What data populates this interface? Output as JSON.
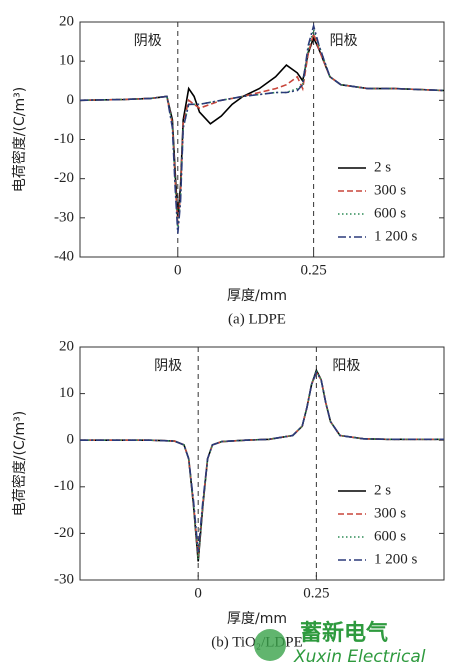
{
  "chart_data": [
    {
      "type": "line",
      "y_label": "电荷密度/(C/m³)",
      "x_label": "厚度/mm",
      "caption": "(a) LDPE",
      "annotations": [
        "阴极",
        "阳极"
      ],
      "vlines": [
        0,
        0.25
      ],
      "xlim": [
        -0.18,
        0.49
      ],
      "ylim": [
        -40,
        20
      ],
      "xticks": [
        0,
        0.25
      ],
      "yticks": [
        20,
        10,
        0,
        -10,
        -20,
        -30,
        -40
      ],
      "legend": "lower right",
      "x": [
        -0.18,
        -0.1,
        -0.05,
        -0.02,
        -0.01,
        -0.005,
        0,
        0.005,
        0.01,
        0.02,
        0.03,
        0.04,
        0.06,
        0.08,
        0.1,
        0.12,
        0.15,
        0.18,
        0.2,
        0.22,
        0.23,
        0.24,
        0.25,
        0.26,
        0.28,
        0.3,
        0.35,
        0.4,
        0.49
      ],
      "series": [
        {
          "name": "2 s",
          "color": "#000000",
          "dash": "solid",
          "values": [
            0,
            0.2,
            0.5,
            1,
            -5,
            -18,
            -30,
            -22,
            -5,
            3,
            1,
            -3,
            -6,
            -4,
            -1,
            1,
            3,
            6,
            9,
            7,
            5,
            12,
            16,
            13,
            6,
            4,
            3,
            3,
            2.5
          ]
        },
        {
          "name": "300 s",
          "color": "#c8453a",
          "dash": "dashed",
          "values": [
            0,
            0.2,
            0.5,
            1,
            -6,
            -20,
            -32,
            -24,
            -6,
            0,
            -1,
            -2,
            -1,
            0,
            0.5,
            1,
            2,
            3,
            4,
            6,
            3,
            12,
            17,
            13,
            6,
            4,
            3,
            3,
            2.5
          ]
        },
        {
          "name": "600 s",
          "color": "#2e8b57",
          "dash": "dotted",
          "values": [
            0,
            0.2,
            0.5,
            1,
            -6,
            -21,
            -33,
            -25,
            -7,
            -1,
            -1,
            -1,
            -0.5,
            0,
            0.5,
            1,
            1.5,
            2,
            2,
            3,
            4,
            13,
            18,
            14,
            6,
            4,
            3,
            3,
            2.5
          ]
        },
        {
          "name": "1 200 s",
          "color": "#2b3a7a",
          "dash": "dashdot",
          "values": [
            0,
            0.2,
            0.5,
            1,
            -7,
            -22,
            -34,
            -26,
            -7,
            -1,
            -1,
            -1,
            -0.5,
            0,
            0.5,
            1,
            1.5,
            2,
            2,
            2.5,
            4,
            14,
            19,
            14,
            6,
            4,
            3,
            3,
            2.5
          ]
        }
      ]
    },
    {
      "type": "line",
      "y_label": "电荷密度/(C/m³)",
      "x_label": "厚度/mm",
      "caption": "(b) TiO₂/LDPE",
      "annotations": [
        "阴极",
        "阳极"
      ],
      "vlines": [
        0,
        0.25
      ],
      "xlim": [
        -0.25,
        0.52
      ],
      "ylim": [
        -30,
        20
      ],
      "xticks": [
        0,
        0.25
      ],
      "yticks": [
        20,
        10,
        0,
        -10,
        -20,
        -30
      ],
      "legend": "lower right",
      "x": [
        -0.25,
        -0.1,
        -0.05,
        -0.03,
        -0.02,
        -0.01,
        0,
        0.01,
        0.02,
        0.03,
        0.05,
        0.1,
        0.15,
        0.2,
        0.22,
        0.23,
        0.24,
        0.25,
        0.26,
        0.27,
        0.28,
        0.3,
        0.35,
        0.4,
        0.52
      ],
      "series": [
        {
          "name": "2 s",
          "color": "#000000",
          "dash": "solid",
          "values": [
            0,
            0,
            -0.2,
            -1,
            -4,
            -14,
            -26,
            -14,
            -4,
            -1,
            -0.3,
            0,
            0.2,
            1,
            3,
            7,
            12,
            15,
            13,
            8,
            4,
            1,
            0.3,
            0.2,
            0.2
          ]
        },
        {
          "name": "300 s",
          "color": "#c8453a",
          "dash": "dashed",
          "values": [
            0,
            0,
            -0.2,
            -1,
            -4,
            -13.5,
            -25,
            -13.5,
            -4,
            -1,
            -0.3,
            0,
            0.2,
            1,
            3,
            7,
            12,
            14.5,
            13,
            8,
            4,
            1,
            0.3,
            0.2,
            0.2
          ]
        },
        {
          "name": "600 s",
          "color": "#2e8b57",
          "dash": "dotted",
          "values": [
            0,
            0,
            -0.2,
            -1,
            -4,
            -13.8,
            -25.5,
            -13.8,
            -4,
            -1,
            -0.3,
            0,
            0.2,
            1,
            3,
            7,
            12,
            15,
            13,
            8,
            4,
            1,
            0.3,
            0.2,
            0.2
          ]
        },
        {
          "name": "1 200 s",
          "color": "#2b3a7a",
          "dash": "dashdot",
          "values": [
            0,
            0,
            -0.2,
            -1,
            -4,
            -13,
            -24,
            -13,
            -4,
            -1,
            -0.3,
            0,
            0.2,
            1,
            3,
            7,
            12,
            14.5,
            13,
            8,
            4,
            1,
            0.3,
            0.2,
            0.2
          ]
        }
      ]
    }
  ],
  "watermark": {
    "cn": "蓄新电气",
    "en": "Xuxin Electrical"
  }
}
